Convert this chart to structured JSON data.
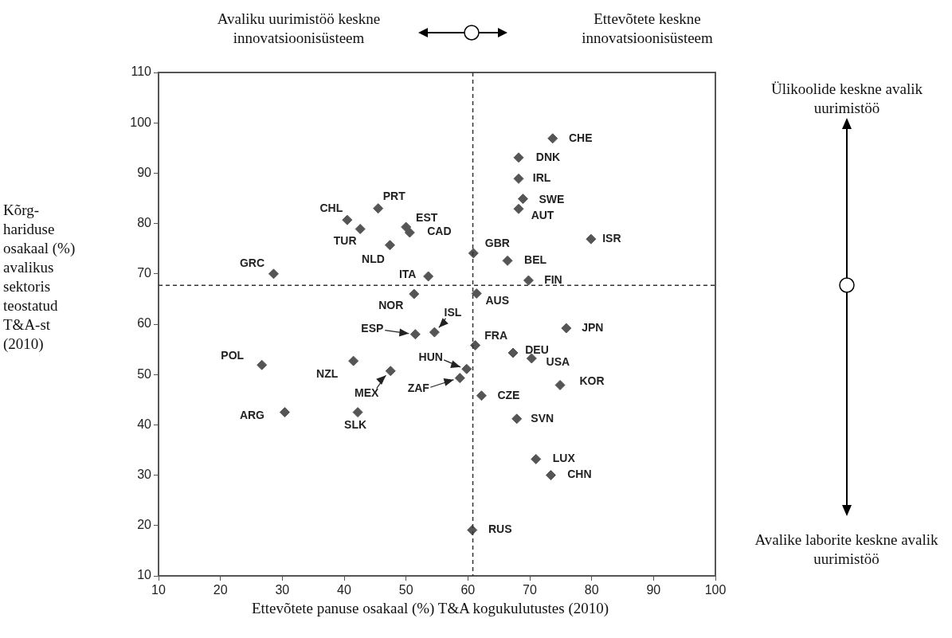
{
  "chart_data": {
    "type": "scatter",
    "xlabel": "Ettevõtete panuse osakaal (%) T&A kogukulutustes (2010)",
    "ylabel": "Kõrg-hariduse osakaal (%) avalikus sektoris teostatud T&A-st (2010)",
    "xlim": [
      10,
      100
    ],
    "xticks": [
      10,
      20,
      30,
      40,
      50,
      60,
      70,
      80,
      90,
      100
    ],
    "ylim": [
      10,
      110
    ],
    "yticks": [
      10,
      20,
      30,
      40,
      50,
      60,
      70,
      80,
      90,
      100,
      110
    ],
    "grid": false,
    "legend": false,
    "marker": "diamond",
    "series": [
      {
        "color": "#555555",
        "x": [
          28.6,
          40.5,
          42.6,
          45.5,
          47.4,
          50.0,
          50.6,
          53.6,
          51.3,
          60.9,
          61.4,
          73.7,
          68.2,
          68.2,
          68.9,
          68.2,
          79.9,
          66.4,
          69.8,
          51.5,
          54.6,
          26.7,
          41.5,
          47.5,
          59.8,
          58.7,
          30.4,
          42.2,
          61.2,
          60.7,
          75.9,
          67.3,
          70.3,
          74.9,
          62.2,
          67.9,
          71.0,
          73.4
        ],
        "values": [
          70.0,
          80.7,
          78.9,
          83.0,
          75.7,
          79.3,
          78.2,
          69.5,
          66.0,
          74.1,
          66.1,
          96.9,
          93.1,
          88.9,
          84.9,
          82.9,
          76.9,
          72.6,
          68.7,
          58.0,
          58.4,
          51.9,
          52.7,
          50.7,
          51.1,
          49.3,
          42.5,
          42.5,
          55.8,
          19.1,
          59.2,
          54.3,
          53.2,
          47.9,
          45.8,
          41.2,
          33.2,
          30.0
        ]
      }
    ],
    "ref_lines": [
      {
        "axis": "y",
        "value": 67.7,
        "color": "#333333",
        "line_style": "dashed"
      },
      {
        "axis": "x",
        "value": 60.8,
        "color": "#333333",
        "line_style": "dashed"
      }
    ],
    "annotations": [
      "Avaliku uurimistöö keskne innovatsioonisüsteem",
      "Ettevõtete keskne innovatsioonisüsteem",
      "Ülikoolide keskne avalik uurimistöö",
      "Avalike laborite keskne avalik uurimistöö",
      {
        "text": "GRC",
        "x": 28.6,
        "y": 70.0
      },
      {
        "text": "CHL",
        "x": 40.5,
        "y": 80.7
      },
      {
        "text": "TUR",
        "x": 42.6,
        "y": 78.9
      },
      {
        "text": "PRT",
        "x": 45.5,
        "y": 83.0
      },
      {
        "text": "NLD",
        "x": 47.4,
        "y": 75.7
      },
      {
        "text": "EST",
        "x": 50.0,
        "y": 79.3
      },
      {
        "text": "CAD",
        "x": 50.6,
        "y": 78.2
      },
      {
        "text": "ITA",
        "x": 53.6,
        "y": 69.5
      },
      {
        "text": "NOR",
        "x": 51.3,
        "y": 66.0
      },
      {
        "text": "GBR",
        "x": 60.9,
        "y": 74.1
      },
      {
        "text": "AUS",
        "x": 61.4,
        "y": 66.1
      },
      {
        "text": "CHE",
        "x": 73.7,
        "y": 96.9
      },
      {
        "text": "DNK",
        "x": 68.2,
        "y": 93.1
      },
      {
        "text": "IRL",
        "x": 68.2,
        "y": 88.9
      },
      {
        "text": "SWE",
        "x": 68.9,
        "y": 84.9
      },
      {
        "text": "AUT",
        "x": 68.2,
        "y": 82.9
      },
      {
        "text": "ISR",
        "x": 79.9,
        "y": 76.9
      },
      {
        "text": "BEL",
        "x": 66.4,
        "y": 72.6
      },
      {
        "text": "FIN",
        "x": 69.8,
        "y": 68.7
      },
      {
        "text": "ESP",
        "x": 51.5,
        "y": 58.0
      },
      {
        "text": "ISL",
        "x": 54.6,
        "y": 58.4
      },
      {
        "text": "POL",
        "x": 26.7,
        "y": 51.9
      },
      {
        "text": "NZL",
        "x": 41.5,
        "y": 52.7
      },
      {
        "text": "MEX",
        "x": 47.5,
        "y": 50.7
      },
      {
        "text": "HUN",
        "x": 59.8,
        "y": 51.1
      },
      {
        "text": "ZAF",
        "x": 58.7,
        "y": 49.3
      },
      {
        "text": "ARG",
        "x": 30.4,
        "y": 42.5
      },
      {
        "text": "SLK",
        "x": 42.2,
        "y": 42.5
      },
      {
        "text": "FRA",
        "x": 61.2,
        "y": 55.8
      },
      {
        "text": "RUS",
        "x": 60.7,
        "y": 19.1
      },
      {
        "text": "JPN",
        "x": 75.9,
        "y": 59.2
      },
      {
        "text": "DEU",
        "x": 67.3,
        "y": 54.3
      },
      {
        "text": "USA",
        "x": 70.3,
        "y": 53.2
      },
      {
        "text": "KOR",
        "x": 74.9,
        "y": 47.9
      },
      {
        "text": "CZE",
        "x": 62.2,
        "y": 45.8
      },
      {
        "text": "SVN",
        "x": 67.9,
        "y": 41.2
      },
      {
        "text": "LUX",
        "x": 71.0,
        "y": 33.2
      },
      {
        "text": "CHN",
        "x": 73.4,
        "y": 30.0
      }
    ]
  }
}
